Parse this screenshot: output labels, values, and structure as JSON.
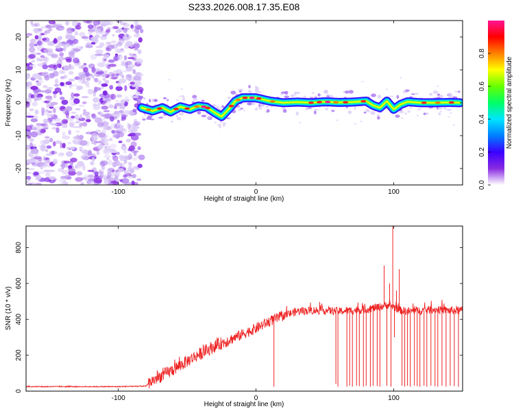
{
  "title": "S233.2026.008.17.35.E08",
  "chart_data": [
    {
      "type": "heatmap",
      "name": "spectrogram",
      "xlabel": "Height of straight line (km)",
      "ylabel": "Frequency (Hz)",
      "xlim": [
        -167,
        150
      ],
      "ylim": [
        -25,
        25
      ],
      "xticks": [
        -100,
        0,
        100
      ],
      "xtick_labels": [
        "-100",
        "0",
        "100"
      ],
      "yticks": [
        -20,
        -10,
        0,
        10,
        20
      ],
      "ytick_labels": [
        "-20",
        "-10",
        "0",
        "10",
        "20"
      ],
      "noise_region_x": [
        -167,
        -83
      ],
      "ridge": {
        "x": [
          -83,
          -75,
          -68,
          -62,
          -55,
          -48,
          -42,
          -36,
          -30,
          -25,
          -20,
          -15,
          -10,
          0,
          10,
          20,
          30,
          40,
          50,
          60,
          70,
          80,
          85,
          90,
          95,
          100,
          105,
          110,
          120,
          130,
          140,
          148
        ],
        "y": [
          -1.5,
          -2.5,
          -1.5,
          -2.8,
          -1.2,
          -2.0,
          -1.0,
          -1.3,
          -3.0,
          -4.2,
          -2.0,
          0.5,
          1.5,
          1.5,
          0.5,
          0.0,
          0.2,
          0.0,
          0.3,
          0.1,
          0.2,
          0.5,
          -0.8,
          -1.5,
          0.5,
          -2.0,
          -0.5,
          0.3,
          0.0,
          0.0,
          0.1,
          0.0
        ]
      },
      "colorbar": {
        "label": "Normalized spectral amplitude",
        "range": [
          0,
          1
        ],
        "ticks": [
          0.0,
          0.2,
          0.4,
          0.6,
          0.8
        ],
        "tick_labels": [
          "0.0",
          "0.2",
          "0.4",
          "0.6",
          "0.8"
        ],
        "colors": [
          "#ffffff",
          "#8a2be2",
          "#3a00ff",
          "#0080ff",
          "#00e5ff",
          "#00ff66",
          "#66ff00",
          "#ffff00",
          "#ff8000",
          "#ff0000",
          "#ff1493"
        ]
      }
    },
    {
      "type": "line",
      "name": "snr",
      "xlabel": "Height of straight line (km)",
      "ylabel": "SNR (10 * v/v)",
      "xlim": [
        -167,
        150
      ],
      "ylim": [
        0,
        920
      ],
      "xticks": [
        -100,
        0,
        100
      ],
      "xtick_labels": [
        "-100",
        "0",
        "100"
      ],
      "yticks": [
        0,
        200,
        400,
        600,
        800
      ],
      "ytick_labels": [
        "0",
        "200",
        "400",
        "600",
        "800"
      ],
      "color": "#ee2222",
      "trend": {
        "x": [
          -167,
          -100,
          -80,
          -75,
          -60,
          -45,
          -30,
          -15,
          0,
          10,
          20,
          30,
          40,
          50,
          60,
          70,
          80,
          90,
          95,
          100,
          105,
          110,
          120,
          130,
          140,
          150
        ],
        "y": [
          25,
          25,
          28,
          60,
          120,
          190,
          250,
          300,
          350,
          390,
          420,
          445,
          450,
          450,
          445,
          450,
          455,
          470,
          480,
          470,
          450,
          445,
          450,
          455,
          450,
          450
        ]
      },
      "spikes": [
        {
          "x": 13,
          "y": 25
        },
        {
          "x": 58,
          "y": 40
        },
        {
          "x": 59.5,
          "y": 25
        },
        {
          "x": 66,
          "y": 25
        },
        {
          "x": 68,
          "y": 30
        },
        {
          "x": 70,
          "y": 25
        },
        {
          "x": 73,
          "y": 30
        },
        {
          "x": 75,
          "y": 28
        },
        {
          "x": 78,
          "y": 25
        },
        {
          "x": 80,
          "y": 30
        },
        {
          "x": 83,
          "y": 25
        },
        {
          "x": 85,
          "y": 30
        },
        {
          "x": 88,
          "y": 28
        },
        {
          "x": 90,
          "y": 25
        },
        {
          "x": 93,
          "y": 700
        },
        {
          "x": 95,
          "y": 30
        },
        {
          "x": 97,
          "y": 600
        },
        {
          "x": 98,
          "y": 25
        },
        {
          "x": 99.3,
          "y": 920
        },
        {
          "x": 100.5,
          "y": 300
        },
        {
          "x": 102,
          "y": 560
        },
        {
          "x": 104,
          "y": 680
        },
        {
          "x": 106,
          "y": 30
        },
        {
          "x": 108,
          "y": 25
        },
        {
          "x": 110,
          "y": 30
        },
        {
          "x": 112,
          "y": 25
        },
        {
          "x": 115,
          "y": 30
        },
        {
          "x": 117,
          "y": 28
        },
        {
          "x": 119,
          "y": 25
        },
        {
          "x": 122,
          "y": 30
        },
        {
          "x": 124,
          "y": 25
        },
        {
          "x": 127,
          "y": 30
        },
        {
          "x": 130,
          "y": 28
        },
        {
          "x": 132,
          "y": 25
        },
        {
          "x": 135,
          "y": 30
        },
        {
          "x": 138,
          "y": 25
        },
        {
          "x": 141,
          "y": 30
        },
        {
          "x": 144,
          "y": 28
        },
        {
          "x": 147,
          "y": 25
        }
      ]
    }
  ]
}
